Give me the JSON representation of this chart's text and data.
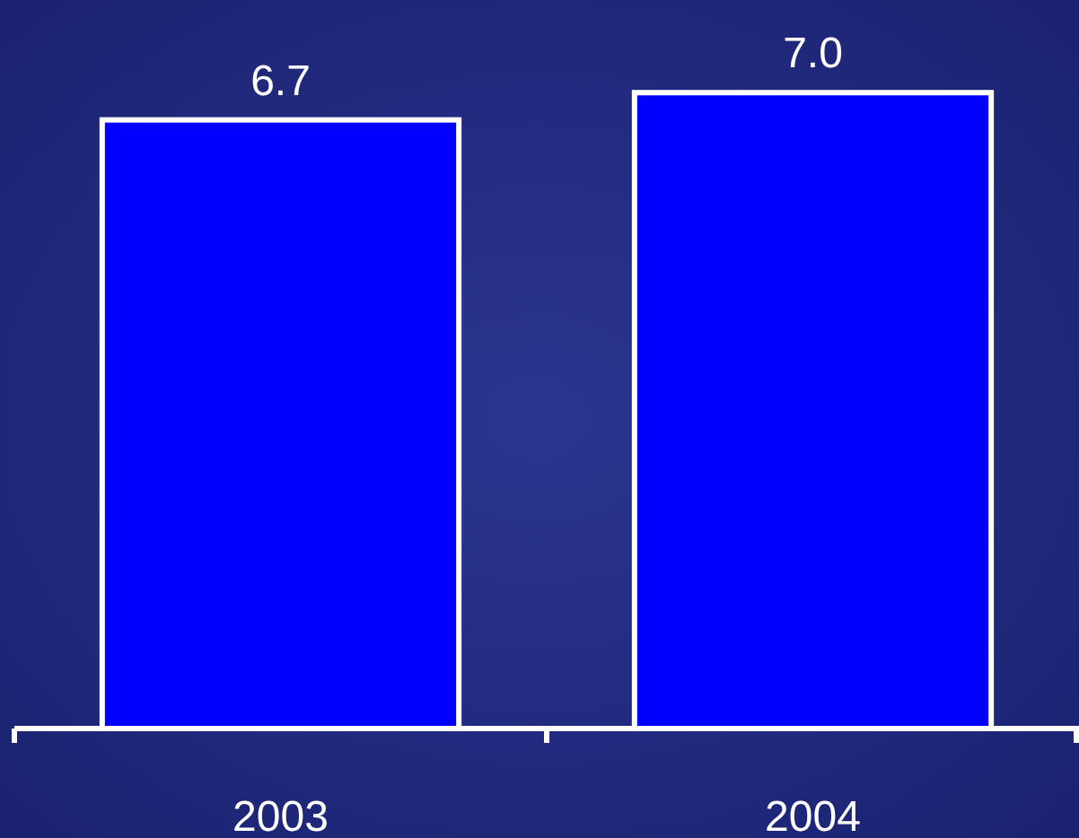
{
  "chart_data": {
    "type": "bar",
    "categories": [
      "2003",
      "2004"
    ],
    "values": [
      6.7,
      7.0
    ],
    "value_labels": [
      "6.7",
      "7.0"
    ],
    "color": "#0000ff",
    "ylim": [
      0,
      8
    ]
  }
}
